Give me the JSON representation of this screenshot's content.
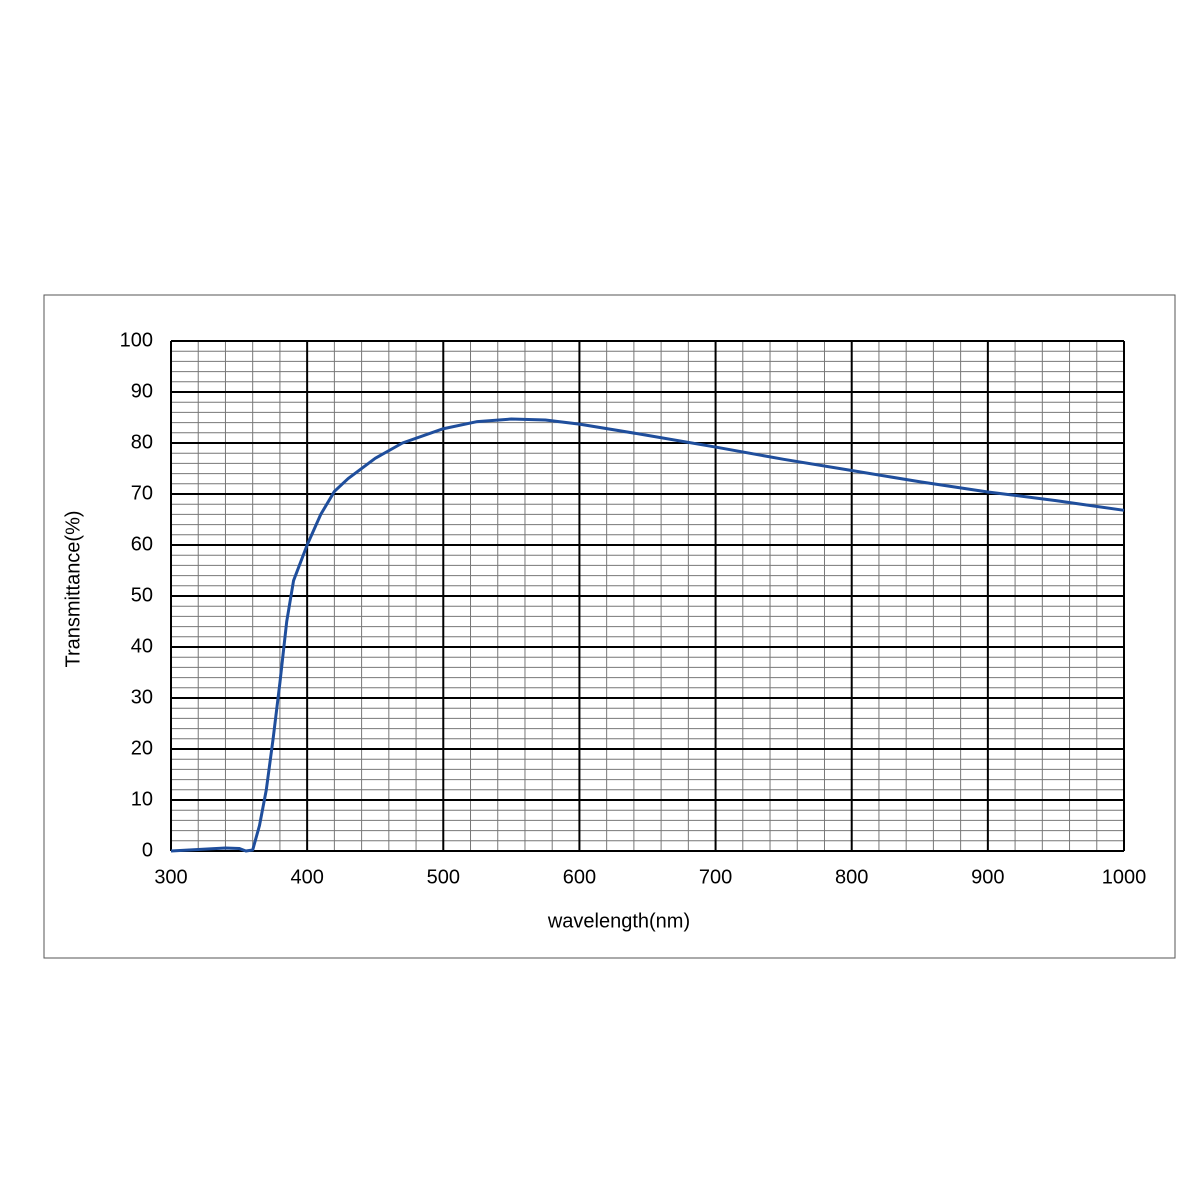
{
  "chart_data": {
    "type": "line",
    "xlabel": "wavelength(nm)",
    "ylabel": "Transmittance(%)",
    "x": [
      300,
      320,
      340,
      350,
      355,
      360,
      365,
      370,
      375,
      380,
      385,
      390,
      400,
      410,
      420,
      430,
      450,
      470,
      500,
      525,
      550,
      575,
      600,
      650,
      700,
      750,
      800,
      850,
      900,
      950,
      1000
    ],
    "series": [
      {
        "color": "#1f4e9c",
        "values": [
          0,
          0.3,
          0.6,
          0.5,
          0,
          0.2,
          5,
          12,
          22,
          33,
          45,
          53,
          60,
          66,
          70.5,
          73,
          77,
          80,
          82.8,
          84.2,
          84.7,
          84.5,
          83.7,
          81.5,
          79.2,
          76.8,
          74.6,
          72.4,
          70.4,
          68.7,
          66.8
        ]
      }
    ],
    "xlim": [
      300,
      1000
    ],
    "xticks": [
      300,
      400,
      500,
      600,
      700,
      800,
      900,
      1000
    ],
    "ylim": [
      0,
      100
    ],
    "yticks": [
      0,
      10,
      20,
      30,
      40,
      50,
      60,
      70,
      80,
      90,
      100
    ],
    "grid": true,
    "minor_grid": {
      "x": 20,
      "y": 2
    }
  }
}
